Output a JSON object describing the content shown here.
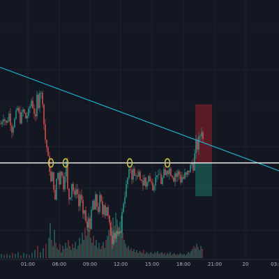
{
  "colors": {
    "background": "#131722",
    "axis_background": "#131722",
    "grid": "#1e222d",
    "candle_up": "#26a69a",
    "candle_down": "#ef5350",
    "volume_up": "#1d5e58",
    "volume_down": "#7a2b30",
    "trendline": "#1fb5d4",
    "horizontal_line": "#ffffff",
    "highlight_circle": "#c9c13c",
    "stop_zone": "#b2222d",
    "target_zone": "#1b5e55",
    "tick_text": "#b2b5be"
  },
  "icons": [],
  "chart_data": {
    "type": "candlestick",
    "grid": true,
    "x_axis": {
      "tick_labels": [
        "01:00",
        "06:00",
        "09:00",
        "12:00",
        "15:00",
        "18:00",
        "21:00",
        "20",
        "03:0"
      ]
    },
    "y_axis": {
      "visible": false,
      "price_min": 0,
      "price_max": 100
    },
    "price_path": [
      [
        0,
        58
      ],
      [
        4,
        62
      ],
      [
        8,
        58
      ],
      [
        12,
        63
      ],
      [
        16,
        55
      ],
      [
        20,
        60
      ],
      [
        24,
        66
      ],
      [
        28,
        60
      ],
      [
        32,
        65
      ],
      [
        36,
        61
      ],
      [
        40,
        64
      ],
      [
        44,
        70
      ],
      [
        48,
        64
      ],
      [
        50,
        60
      ],
      [
        52,
        72
      ],
      [
        54,
        68
      ],
      [
        56,
        75
      ],
      [
        58,
        73
      ],
      [
        60,
        70
      ],
      [
        62,
        58
      ],
      [
        64,
        50
      ],
      [
        66,
        46
      ],
      [
        68,
        40
      ],
      [
        70,
        35
      ],
      [
        72,
        28
      ],
      [
        74,
        32
      ],
      [
        76,
        26
      ],
      [
        78,
        18
      ],
      [
        80,
        30
      ],
      [
        82,
        33
      ],
      [
        84,
        28
      ],
      [
        86,
        35
      ],
      [
        88,
        31
      ],
      [
        90,
        26
      ],
      [
        92,
        33
      ],
      [
        94,
        38
      ],
      [
        96,
        24
      ],
      [
        98,
        20
      ],
      [
        100,
        22
      ],
      [
        102,
        28
      ],
      [
        104,
        24
      ],
      [
        106,
        20
      ],
      [
        108,
        26
      ],
      [
        110,
        22
      ],
      [
        112,
        16
      ],
      [
        114,
        22
      ],
      [
        116,
        18
      ],
      [
        118,
        10
      ],
      [
        120,
        14
      ],
      [
        122,
        8
      ],
      [
        124,
        4
      ],
      [
        126,
        10
      ],
      [
        128,
        6
      ],
      [
        130,
        12
      ],
      [
        132,
        18
      ],
      [
        134,
        14
      ],
      [
        136,
        20
      ],
      [
        138,
        16
      ],
      [
        140,
        14
      ],
      [
        142,
        20
      ],
      [
        144,
        17
      ],
      [
        146,
        12
      ],
      [
        148,
        18
      ],
      [
        150,
        12
      ],
      [
        152,
        16
      ],
      [
        154,
        10
      ],
      [
        156,
        6
      ],
      [
        158,
        2
      ],
      [
        160,
        -2
      ],
      [
        162,
        4
      ],
      [
        164,
        0
      ],
      [
        166,
        3
      ],
      [
        168,
        0
      ],
      [
        170,
        1
      ],
      [
        172,
        4
      ],
      [
        174,
        12
      ],
      [
        176,
        18
      ],
      [
        178,
        22
      ],
      [
        180,
        26
      ],
      [
        182,
        30
      ],
      [
        184,
        33
      ],
      [
        186,
        35
      ],
      [
        188,
        31
      ],
      [
        190,
        34
      ],
      [
        192,
        31
      ],
      [
        194,
        33
      ],
      [
        196,
        30
      ],
      [
        198,
        32
      ],
      [
        200,
        28
      ],
      [
        202,
        30
      ],
      [
        204,
        27
      ],
      [
        206,
        30
      ],
      [
        208,
        26
      ],
      [
        210,
        29
      ],
      [
        212,
        31
      ],
      [
        214,
        28
      ],
      [
        216,
        30
      ],
      [
        218,
        26
      ],
      [
        220,
        28
      ],
      [
        222,
        30
      ],
      [
        224,
        33
      ],
      [
        226,
        30
      ],
      [
        228,
        32
      ],
      [
        230,
        28
      ],
      [
        232,
        30
      ],
      [
        234,
        33
      ],
      [
        236,
        31
      ],
      [
        238,
        35
      ],
      [
        240,
        34
      ],
      [
        242,
        35
      ],
      [
        244,
        33
      ],
      [
        246,
        32
      ],
      [
        248,
        30
      ],
      [
        250,
        33
      ],
      [
        252,
        31
      ],
      [
        254,
        33
      ],
      [
        256,
        32
      ],
      [
        258,
        29
      ],
      [
        260,
        31
      ],
      [
        262,
        30
      ],
      [
        264,
        32
      ],
      [
        266,
        31
      ],
      [
        268,
        33
      ],
      [
        270,
        34
      ],
      [
        272,
        36
      ],
      [
        274,
        38
      ],
      [
        276,
        36
      ],
      [
        278,
        42
      ],
      [
        280,
        48
      ],
      [
        282,
        46
      ],
      [
        284,
        50
      ],
      [
        286,
        52
      ],
      [
        288,
        55
      ],
      [
        290,
        50
      ]
    ],
    "trendline": {
      "from": [
        0,
        87
      ],
      "to": [
        400,
        34
      ]
    },
    "horizontal_level": 38,
    "highlight_points": [
      [
        73,
        38
      ],
      [
        94,
        38
      ],
      [
        186,
        38
      ],
      [
        240,
        38
      ]
    ],
    "stop_zone": {
      "x0": 280,
      "x1": 304,
      "top": 68,
      "bottom": 38
    },
    "target_zone": {
      "x0": 280,
      "x1": 304,
      "top": 38,
      "bottom": 21
    },
    "volume": [
      [
        2,
        4
      ],
      [
        6,
        3
      ],
      [
        10,
        4
      ],
      [
        14,
        3
      ],
      [
        18,
        5
      ],
      [
        22,
        4
      ],
      [
        26,
        6
      ],
      [
        30,
        3
      ],
      [
        34,
        5
      ],
      [
        38,
        4
      ],
      [
        42,
        3
      ],
      [
        46,
        5
      ],
      [
        50,
        8
      ],
      [
        54,
        12
      ],
      [
        58,
        6
      ],
      [
        62,
        10
      ],
      [
        66,
        14
      ],
      [
        70,
        20
      ],
      [
        72,
        35
      ],
      [
        74,
        18
      ],
      [
        76,
        12
      ],
      [
        78,
        28
      ],
      [
        80,
        15
      ],
      [
        82,
        10
      ],
      [
        84,
        8
      ],
      [
        86,
        14
      ],
      [
        88,
        6
      ],
      [
        90,
        12
      ],
      [
        92,
        9
      ],
      [
        94,
        15
      ],
      [
        96,
        10
      ],
      [
        98,
        18
      ],
      [
        100,
        12
      ],
      [
        102,
        8
      ],
      [
        104,
        14
      ],
      [
        106,
        10
      ],
      [
        108,
        16
      ],
      [
        110,
        9
      ],
      [
        112,
        12
      ],
      [
        114,
        20
      ],
      [
        116,
        14
      ],
      [
        118,
        25
      ],
      [
        120,
        18
      ],
      [
        122,
        30
      ],
      [
        124,
        22
      ],
      [
        126,
        35
      ],
      [
        128,
        28
      ],
      [
        130,
        20
      ],
      [
        132,
        15
      ],
      [
        134,
        22
      ],
      [
        136,
        12
      ],
      [
        138,
        18
      ],
      [
        140,
        10
      ],
      [
        142,
        15
      ],
      [
        144,
        9
      ],
      [
        146,
        12
      ],
      [
        148,
        16
      ],
      [
        150,
        10
      ],
      [
        152,
        18
      ],
      [
        154,
        22
      ],
      [
        156,
        28
      ],
      [
        158,
        35
      ],
      [
        160,
        30
      ],
      [
        162,
        40
      ],
      [
        164,
        32
      ],
      [
        166,
        45
      ],
      [
        168,
        38
      ],
      [
        170,
        30
      ],
      [
        172,
        36
      ],
      [
        174,
        42
      ],
      [
        176,
        25
      ],
      [
        178,
        18
      ],
      [
        180,
        14
      ],
      [
        182,
        10
      ],
      [
        184,
        12
      ],
      [
        186,
        8
      ],
      [
        188,
        10
      ],
      [
        190,
        7
      ],
      [
        192,
        9
      ],
      [
        194,
        6
      ],
      [
        196,
        8
      ],
      [
        198,
        5
      ],
      [
        200,
        7
      ],
      [
        202,
        6
      ],
      [
        204,
        5
      ],
      [
        206,
        8
      ],
      [
        208,
        4
      ],
      [
        210,
        6
      ],
      [
        212,
        5
      ],
      [
        214,
        4
      ],
      [
        216,
        6
      ],
      [
        218,
        5
      ],
      [
        220,
        4
      ],
      [
        222,
        6
      ],
      [
        224,
        5
      ],
      [
        226,
        7
      ],
      [
        228,
        4
      ],
      [
        230,
        5
      ],
      [
        232,
        6
      ],
      [
        234,
        4
      ],
      [
        236,
        5
      ],
      [
        238,
        3
      ],
      [
        240,
        5
      ],
      [
        242,
        4
      ],
      [
        244,
        6
      ],
      [
        246,
        3
      ],
      [
        248,
        4
      ],
      [
        250,
        5
      ],
      [
        252,
        3
      ],
      [
        254,
        4
      ],
      [
        256,
        3
      ],
      [
        258,
        5
      ],
      [
        260,
        4
      ],
      [
        262,
        3
      ],
      [
        264,
        4
      ],
      [
        266,
        3
      ],
      [
        268,
        4
      ],
      [
        270,
        6
      ],
      [
        272,
        5
      ],
      [
        274,
        7
      ],
      [
        276,
        9
      ],
      [
        278,
        12
      ],
      [
        280,
        10
      ],
      [
        282,
        14
      ],
      [
        284,
        11
      ],
      [
        286,
        8
      ],
      [
        288,
        12
      ],
      [
        290,
        9
      ]
    ]
  }
}
